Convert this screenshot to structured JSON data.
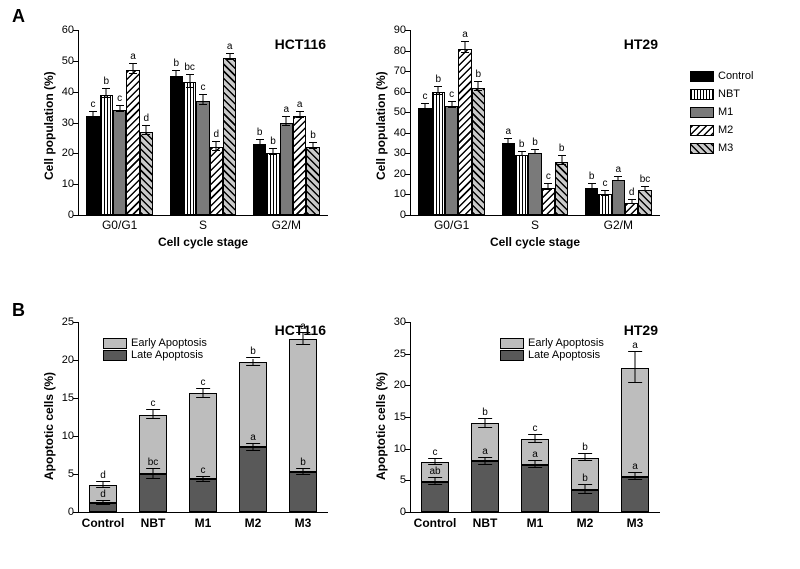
{
  "figure_size": [
    800,
    569
  ],
  "text_color": "#000000",
  "background_color": "#ffffff",
  "axis_color": "#000000",
  "panelA_label": "A",
  "panelB_label": "B",
  "panelA": {
    "ylabel": "Cell population (%)",
    "xlabel": "Cell cycle stage",
    "groups": [
      "G0/G1",
      "S",
      "G2/M"
    ],
    "series": [
      {
        "name": "Control",
        "class": "fill-control"
      },
      {
        "name": "NBT",
        "class": "fill-nbt"
      },
      {
        "name": "M1",
        "class": "fill-m1"
      },
      {
        "name": "M2",
        "class": "fill-m2"
      },
      {
        "name": "M3",
        "class": "fill-m3"
      }
    ],
    "left": {
      "title": "HCT116",
      "ylim": [
        0,
        60
      ],
      "ytick_step": 10,
      "values": [
        [
          32,
          39,
          34,
          47,
          27
        ],
        [
          45,
          43,
          37,
          22,
          51
        ],
        [
          23,
          20,
          30,
          32,
          22
        ]
      ],
      "errors": [
        [
          1.0,
          1.5,
          1.0,
          1.5,
          1.5
        ],
        [
          1.5,
          2.0,
          1.5,
          1.5,
          1.0
        ],
        [
          1.0,
          1.0,
          1.5,
          1.0,
          1.0
        ]
      ],
      "sig": [
        [
          "c",
          "b",
          "c",
          "a",
          "d"
        ],
        [
          "b",
          "bc",
          "c",
          "d",
          "a"
        ],
        [
          "b",
          "b",
          "a",
          "a",
          "b"
        ]
      ]
    },
    "right": {
      "title": "HT29",
      "ylim": [
        0,
        90
      ],
      "ytick_step": 10,
      "values": [
        [
          52,
          60,
          53,
          81,
          62
        ],
        [
          35,
          29,
          30,
          13,
          26
        ],
        [
          13,
          10,
          17,
          6,
          12
        ]
      ],
      "errors": [
        [
          1.5,
          2.0,
          1.5,
          2.5,
          2.0
        ],
        [
          1.5,
          1.0,
          1.0,
          1.5,
          2.0
        ],
        [
          1.5,
          1.0,
          1.0,
          1.0,
          1.0
        ]
      ],
      "sig": [
        [
          "c",
          "b",
          "c",
          "a",
          "b"
        ],
        [
          "a",
          "b",
          "b",
          "c",
          "b"
        ],
        [
          "b",
          "c",
          "a",
          "d",
          "bc"
        ]
      ]
    }
  },
  "panelB": {
    "ylabel": "Apoptotic cells (%)",
    "xgroups": [
      "Control",
      "NBT",
      "M1",
      "M2",
      "M3"
    ],
    "series": [
      {
        "name": "Early Apoptosis",
        "class": "fill-early"
      },
      {
        "name": "Late Apoptosis",
        "class": "fill-late"
      }
    ],
    "left": {
      "title": "HCT116",
      "ylim": [
        0,
        25
      ],
      "ytick_step": 5,
      "late": [
        1.2,
        5.0,
        4.3,
        8.5,
        5.3
      ],
      "early": [
        2.3,
        7.8,
        11.3,
        11.2,
        17.5
      ],
      "err_late": [
        0.3,
        0.6,
        0.3,
        0.5,
        0.4
      ],
      "err_total": [
        0.4,
        0.6,
        0.6,
        0.5,
        0.8
      ],
      "sig_late": [
        "d",
        "bc",
        "c",
        "a",
        "b"
      ],
      "sig_total": [
        "d",
        "c",
        "c",
        "b",
        "a"
      ]
    },
    "right": {
      "title": "HT29",
      "ylim": [
        0,
        30
      ],
      "ytick_step": 5,
      "late": [
        4.8,
        8.0,
        7.5,
        3.5,
        5.6
      ],
      "early": [
        3.1,
        6.0,
        4.0,
        5.1,
        17.2
      ],
      "err_late": [
        0.6,
        0.5,
        0.6,
        0.7,
        0.5
      ],
      "err_total": [
        0.5,
        0.7,
        0.6,
        0.6,
        2.4
      ],
      "sig_late": [
        "ab",
        "a",
        "a",
        "b",
        "a"
      ],
      "sig_total": [
        "c",
        "b",
        "c",
        "b",
        "a"
      ]
    }
  },
  "legendA": [
    "Control",
    "NBT",
    "M1",
    "M2",
    "M3"
  ]
}
